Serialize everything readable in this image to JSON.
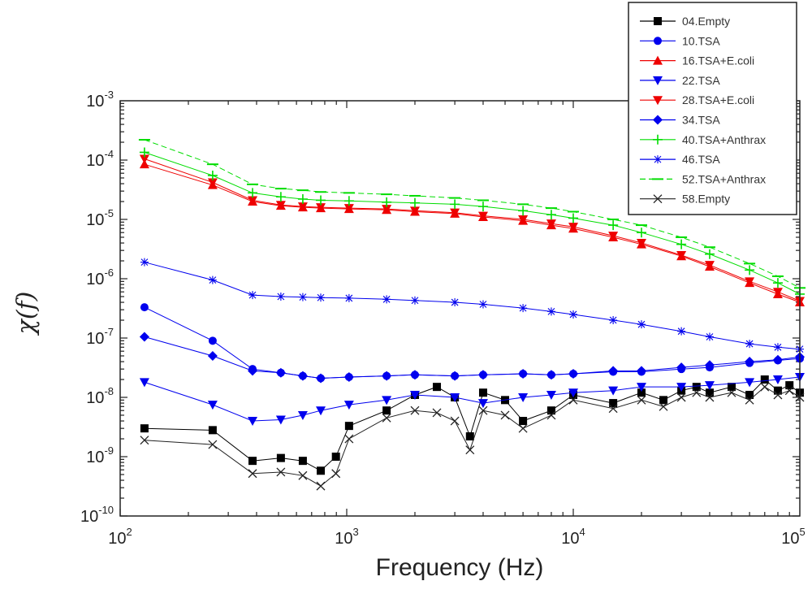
{
  "chart_data": {
    "type": "line",
    "title": "",
    "xlabel": "Frequency (Hz)",
    "ylabel": "χ(f)",
    "xscale": "log",
    "yscale": "log",
    "xlim": [
      100,
      100000
    ],
    "ylim": [
      1e-10,
      0.001
    ],
    "x_ticks": [
      {
        "value": 100,
        "base": "10",
        "exp": "2"
      },
      {
        "value": 1000,
        "base": "10",
        "exp": "3"
      },
      {
        "value": 10000,
        "base": "10",
        "exp": "4"
      },
      {
        "value": 100000,
        "base": "10",
        "exp": "5"
      }
    ],
    "y_ticks": [
      {
        "value": 1e-10,
        "base": "10",
        "exp": "-10"
      },
      {
        "value": 1e-09,
        "base": "10",
        "exp": "-9"
      },
      {
        "value": 1e-08,
        "base": "10",
        "exp": "-8"
      },
      {
        "value": 1e-07,
        "base": "10",
        "exp": "-7"
      },
      {
        "value": 1e-06,
        "base": "10",
        "exp": "-6"
      },
      {
        "value": 1e-05,
        "base": "10",
        "exp": "-5"
      },
      {
        "value": 0.0001,
        "base": "10",
        "exp": "-4"
      },
      {
        "value": 0.001,
        "base": "10",
        "exp": "-3"
      }
    ],
    "legend_position": "top-right",
    "series": [
      {
        "name": "04.Empty",
        "color": "#000000",
        "marker": "square",
        "x": [
          128,
          256,
          384,
          512,
          640,
          768,
          896,
          1024,
          1500,
          2000,
          2500,
          3000,
          3500,
          4000,
          5000,
          6000,
          8000,
          10000,
          15000,
          20000,
          25000,
          30000,
          35000,
          40000,
          50000,
          60000,
          70000,
          80000,
          90000,
          100000
        ],
        "y": [
          3e-09,
          2.8e-09,
          8.5e-10,
          9.5e-10,
          8.5e-10,
          5.8e-10,
          1e-09,
          3.3e-09,
          6e-09,
          1.1e-08,
          1.5e-08,
          1e-08,
          2.2e-09,
          1.2e-08,
          9e-09,
          4e-09,
          6e-09,
          1.1e-08,
          8e-09,
          1.2e-08,
          9e-09,
          1.3e-08,
          1.5e-08,
          1.2e-08,
          1.5e-08,
          1.1e-08,
          2e-08,
          1.3e-08,
          1.6e-08,
          1.2e-08
        ]
      },
      {
        "name": "10.TSA",
        "color": "#0000ee",
        "marker": "circle",
        "x": [
          128,
          256,
          384,
          512,
          640,
          768,
          1024,
          1500,
          2000,
          3000,
          4000,
          6000,
          8000,
          10000,
          15000,
          20000,
          30000,
          40000,
          60000,
          80000,
          100000
        ],
        "y": [
          3.3e-07,
          9e-08,
          3e-08,
          2.6e-08,
          2.3e-08,
          2.1e-08,
          2.2e-08,
          2.3e-08,
          2.4e-08,
          2.3e-08,
          2.4e-08,
          2.5e-08,
          2.4e-08,
          2.5e-08,
          2.7e-08,
          2.7e-08,
          3e-08,
          3.2e-08,
          3.8e-08,
          4.2e-08,
          4.5e-08
        ]
      },
      {
        "name": "16.TSA+E.coli",
        "color": "#ee0000",
        "marker": "triangle-up",
        "x": [
          128,
          256,
          384,
          512,
          640,
          768,
          1024,
          1500,
          2000,
          3000,
          4000,
          6000,
          8000,
          10000,
          15000,
          20000,
          30000,
          40000,
          60000,
          80000,
          100000
        ],
        "y": [
          8.5e-05,
          3.8e-05,
          2e-05,
          1.7e-05,
          1.6e-05,
          1.55e-05,
          1.5e-05,
          1.45e-05,
          1.35e-05,
          1.25e-05,
          1.1e-05,
          9.5e-06,
          8e-06,
          7e-06,
          5e-06,
          3.8e-06,
          2.4e-06,
          1.6e-06,
          8.5e-07,
          5.5e-07,
          4e-07
        ]
      },
      {
        "name": "22.TSA",
        "color": "#0000ee",
        "marker": "triangle-down",
        "x": [
          128,
          256,
          384,
          512,
          640,
          768,
          1024,
          1500,
          2000,
          3000,
          4000,
          6000,
          8000,
          10000,
          15000,
          20000,
          30000,
          40000,
          60000,
          80000,
          100000
        ],
        "y": [
          1.8e-08,
          7.5e-09,
          4e-09,
          4.2e-09,
          5e-09,
          6e-09,
          7.5e-09,
          9e-09,
          1.1e-08,
          1e-08,
          8e-09,
          1e-08,
          1.1e-08,
          1.2e-08,
          1.3e-08,
          1.5e-08,
          1.5e-08,
          1.6e-08,
          1.8e-08,
          2e-08,
          2.2e-08
        ]
      },
      {
        "name": "28.TSA+E.coli",
        "color": "#ee0000",
        "marker": "triangle-down",
        "x": [
          128,
          256,
          384,
          512,
          640,
          768,
          1024,
          1500,
          2000,
          3000,
          4000,
          6000,
          8000,
          10000,
          15000,
          20000,
          30000,
          40000,
          60000,
          80000,
          100000
        ],
        "y": [
          0.000105,
          4.2e-05,
          2.1e-05,
          1.75e-05,
          1.65e-05,
          1.6e-05,
          1.55e-05,
          1.5e-05,
          1.4e-05,
          1.3e-05,
          1.15e-05,
          1e-05,
          8.5e-06,
          7.5e-06,
          5.3e-06,
          4e-06,
          2.5e-06,
          1.7e-06,
          9e-07,
          6e-07,
          4.2e-07
        ]
      },
      {
        "name": "34.TSA",
        "color": "#0000ee",
        "marker": "diamond",
        "x": [
          128,
          256,
          384,
          512,
          640,
          768,
          1024,
          1500,
          2000,
          3000,
          4000,
          6000,
          8000,
          10000,
          15000,
          20000,
          30000,
          40000,
          60000,
          80000,
          100000
        ],
        "y": [
          1.05e-07,
          5e-08,
          2.8e-08,
          2.6e-08,
          2.3e-08,
          2.1e-08,
          2.2e-08,
          2.3e-08,
          2.4e-08,
          2.3e-08,
          2.4e-08,
          2.5e-08,
          2.4e-08,
          2.5e-08,
          2.8e-08,
          2.8e-08,
          3.2e-08,
          3.5e-08,
          4e-08,
          4.3e-08,
          4.8e-08
        ]
      },
      {
        "name": "40.TSA+Anthrax",
        "color": "#00dd00",
        "marker": "plus",
        "x": [
          128,
          256,
          384,
          512,
          640,
          768,
          1024,
          1500,
          2000,
          3000,
          4000,
          6000,
          8000,
          10000,
          15000,
          20000,
          30000,
          40000,
          60000,
          80000,
          100000
        ],
        "y": [
          0.000135,
          5.5e-05,
          2.8e-05,
          2.4e-05,
          2.2e-05,
          2.1e-05,
          2.05e-05,
          1.95e-05,
          1.9e-05,
          1.8e-05,
          1.65e-05,
          1.4e-05,
          1.2e-05,
          1.05e-05,
          8e-06,
          6e-06,
          3.8e-06,
          2.6e-06,
          1.4e-06,
          8.5e-07,
          5.5e-07
        ]
      },
      {
        "name": "46.TSA",
        "color": "#0000ee",
        "marker": "asterisk",
        "x": [
          128,
          256,
          384,
          512,
          640,
          768,
          1024,
          1500,
          2000,
          3000,
          4000,
          6000,
          8000,
          10000,
          15000,
          20000,
          30000,
          40000,
          60000,
          80000,
          100000
        ],
        "y": [
          1.9e-06,
          9.5e-07,
          5.3e-07,
          5e-07,
          4.9e-07,
          4.8e-07,
          4.7e-07,
          4.5e-07,
          4.3e-07,
          4e-07,
          3.7e-07,
          3.2e-07,
          2.8e-07,
          2.5e-07,
          2e-07,
          1.7e-07,
          1.3e-07,
          1.05e-07,
          8e-08,
          7e-08,
          6.5e-08
        ]
      },
      {
        "name": "52.TSA+Anthrax",
        "color": "#00dd00",
        "marker": "dash",
        "x": [
          128,
          256,
          384,
          512,
          640,
          768,
          1024,
          1500,
          2000,
          3000,
          4000,
          6000,
          8000,
          10000,
          15000,
          20000,
          30000,
          40000,
          60000,
          80000,
          100000
        ],
        "y": [
          0.00022,
          8.5e-05,
          3.9e-05,
          3.3e-05,
          3.1e-05,
          2.9e-05,
          2.8e-05,
          2.65e-05,
          2.5e-05,
          2.3e-05,
          2.1e-05,
          1.8e-05,
          1.55e-05,
          1.35e-05,
          1e-05,
          8e-06,
          5e-06,
          3.4e-06,
          1.8e-06,
          1.1e-06,
          7e-07
        ]
      },
      {
        "name": "58.Empty",
        "color": "#222222",
        "marker": "x",
        "x": [
          128,
          256,
          384,
          512,
          640,
          768,
          896,
          1024,
          1500,
          2000,
          2500,
          3000,
          3500,
          4000,
          5000,
          6000,
          8000,
          10000,
          15000,
          20000,
          25000,
          30000,
          35000,
          40000,
          50000,
          60000,
          70000,
          80000,
          90000,
          100000
        ],
        "y": [
          1.9e-09,
          1.6e-09,
          5.2e-10,
          5.5e-10,
          4.8e-10,
          3.2e-10,
          5.2e-10,
          2e-09,
          4.5e-09,
          6e-09,
          5.5e-09,
          4e-09,
          1.3e-09,
          6e-09,
          5e-09,
          3e-09,
          5e-09,
          9e-09,
          6.5e-09,
          9e-09,
          7e-09,
          1e-08,
          1.2e-08,
          1e-08,
          1.2e-08,
          9e-09,
          1.5e-08,
          1.1e-08,
          1.3e-08,
          1e-08
        ]
      }
    ]
  }
}
